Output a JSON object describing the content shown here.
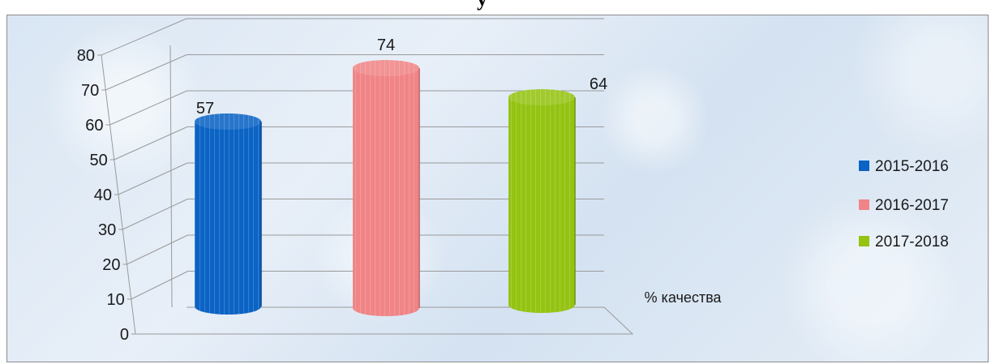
{
  "page_glyph": "у",
  "chart_data": {
    "type": "bar",
    "style": "3d-cylinder",
    "categories": [
      "% качества"
    ],
    "series": [
      {
        "name": "2015-2016",
        "values": [
          57
        ],
        "color": "#0b63c4"
      },
      {
        "name": "2016-2017",
        "values": [
          74
        ],
        "color": "#f08486"
      },
      {
        "name": "2017-2018",
        "values": [
          64
        ],
        "color": "#94c312"
      }
    ],
    "y_ticks": [
      "0",
      "10",
      "20",
      "30",
      "40",
      "50",
      "60",
      "70",
      "80"
    ],
    "ylim": [
      0,
      80
    ],
    "grid": true,
    "legend_position": "right",
    "title": "",
    "xlabel": "",
    "ylabel": ""
  }
}
